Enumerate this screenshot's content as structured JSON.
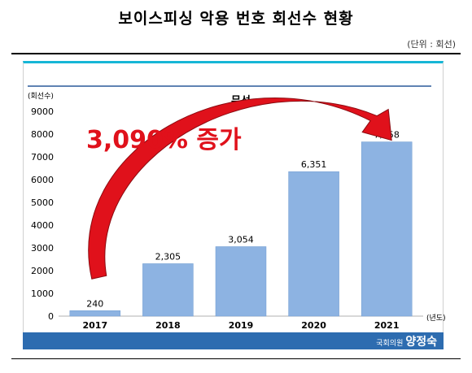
{
  "page": {
    "title": "보이스피싱 악용 번호 회선수 현황",
    "unit_note": "(단위 : 회선)",
    "credit_prefix": "국회의원",
    "credit_name": "양정숙"
  },
  "colors": {
    "bar": "#8db3e2",
    "bar_edge": "#6f9bd0",
    "arrow": "#e0111b",
    "arrow_dark": "#8a0a10",
    "frame_top": "#16b6d6",
    "footer": "#2d6cb0",
    "series_rule": "#2a5a9a"
  },
  "chart_data": {
    "type": "bar",
    "title": "무선",
    "ylabel": "(회선수)",
    "xlabel": "(년도)",
    "categories": [
      "2017",
      "2018",
      "2019",
      "2020",
      "2021"
    ],
    "values": [
      240,
      2305,
      3054,
      6351,
      7658
    ],
    "value_labels": [
      "240",
      "2,305",
      "3,054",
      "6,351",
      "7,658"
    ],
    "ylim": [
      0,
      9000
    ],
    "yticks": [
      0,
      1000,
      2000,
      3000,
      4000,
      5000,
      6000,
      7000,
      8000,
      9000
    ],
    "grid": false,
    "annotation": "3,090% 증가"
  }
}
